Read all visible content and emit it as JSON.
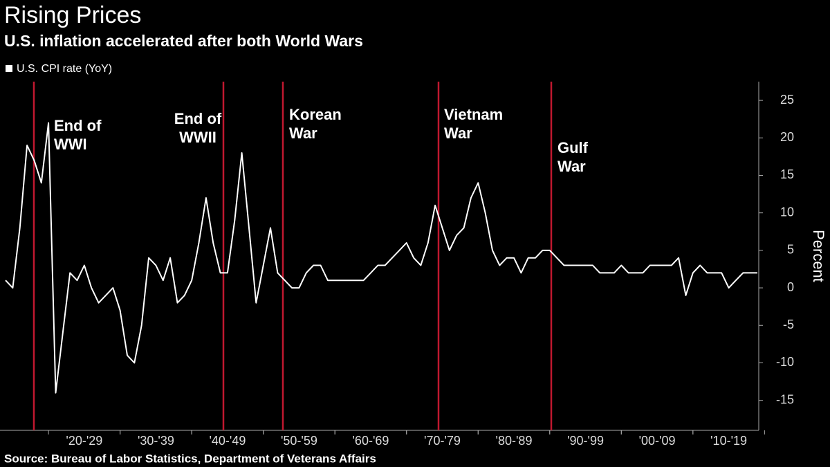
{
  "chart_data": {
    "type": "line",
    "title": "Rising Prices",
    "subtitle": "U.S. inflation accelerated after both World Wars",
    "y_label": "Percent",
    "source": "Source: Bureau of Labor Statistics, Department of Veterans Affairs",
    "categories": [
      null,
      null,
      null,
      null,
      null,
      null,
      null,
      null,
      null,
      null,
      null,
      "'20-'29",
      null,
      null,
      null,
      null,
      null,
      null,
      null,
      null,
      null,
      "'30-'39",
      null,
      null,
      null,
      null,
      null,
      null,
      null,
      null,
      null,
      "'40-'49",
      null,
      null,
      null,
      null,
      null,
      null,
      null,
      null,
      null,
      "'50-'59",
      null,
      null,
      null,
      null,
      null,
      null,
      null,
      null,
      null,
      "'60-'69",
      null,
      null,
      null,
      null,
      null,
      null,
      null,
      null,
      null,
      "'70-'79",
      null,
      null,
      null,
      null,
      null,
      null,
      null,
      null,
      null,
      "'80-'89",
      null,
      null,
      null,
      null,
      null,
      null,
      null,
      null,
      null,
      "'90-'99",
      null,
      null,
      null,
      null,
      null,
      null,
      null,
      null,
      null,
      "'00-'09",
      null,
      null,
      null,
      null,
      null,
      null,
      null,
      null,
      null,
      "'10-'19",
      null,
      null,
      null,
      null
    ],
    "series": [
      {
        "name": "U.S. CPI rate (YoY)",
        "color": "#ffffff",
        "values": [
          1,
          0,
          8,
          19,
          17,
          14,
          22,
          -14,
          -6,
          2,
          1,
          3,
          0,
          -2,
          -1,
          0,
          -3,
          -9,
          -10,
          -5,
          4,
          3,
          1,
          4,
          -2,
          -1,
          1,
          6,
          12,
          6,
          2,
          2,
          9,
          18,
          8,
          -2,
          3,
          8,
          2,
          1,
          0,
          0,
          2,
          3,
          3,
          1,
          1,
          1,
          1,
          1,
          1,
          2,
          3,
          3,
          4,
          5,
          6,
          4,
          3,
          6,
          11,
          8,
          5,
          7,
          8,
          12,
          14,
          10,
          5,
          3,
          4,
          4,
          2,
          4,
          4,
          5,
          5,
          4,
          3,
          3,
          3,
          3,
          3,
          2,
          2,
          2,
          3,
          2,
          2,
          2,
          3,
          3,
          3,
          3,
          4,
          -1,
          2,
          3,
          2,
          2,
          2,
          0,
          1,
          2,
          2,
          2
        ]
      }
    ],
    "annotations": [
      {
        "lines": [
          "End of",
          "WWI"
        ]
      },
      {
        "lines": [
          "End of",
          "WWII"
        ]
      },
      {
        "lines": [
          "Korean",
          "War"
        ]
      },
      {
        "lines": [
          "Vietnam",
          "War"
        ]
      },
      {
        "lines": [
          "Gulf",
          "War"
        ]
      }
    ],
    "annotation_color": "#c0182f",
    "ylim": [
      -19,
      27.5
    ],
    "yticks": [
      -15,
      -10,
      -5,
      0,
      5,
      10,
      15,
      20,
      25
    ],
    "grid": false
  }
}
